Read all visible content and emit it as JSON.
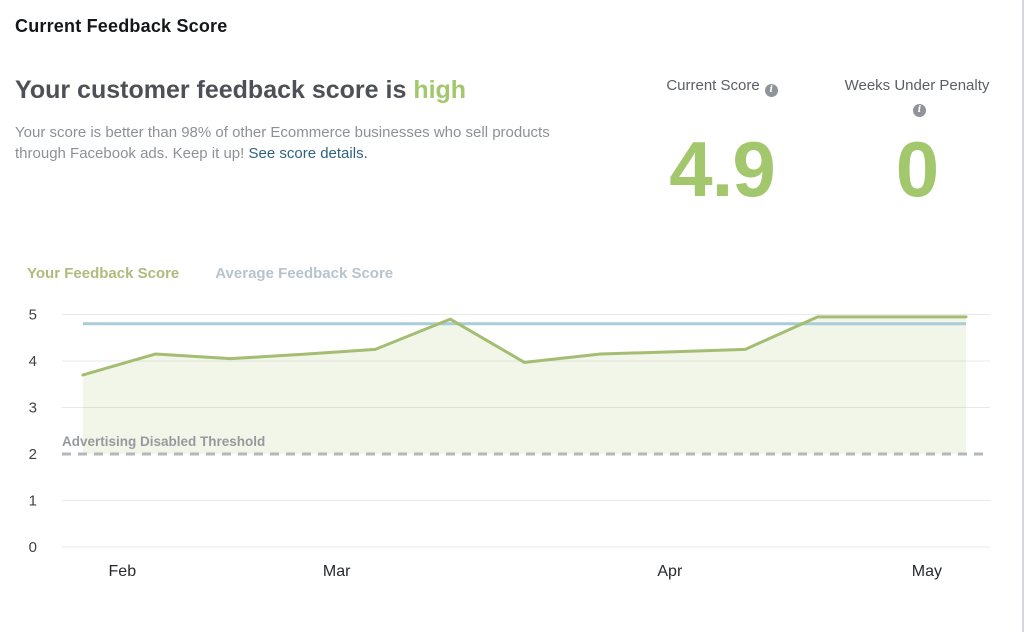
{
  "page": {
    "title": "Current Feedback Score"
  },
  "summary": {
    "headline_prefix": "Your customer feedback score is ",
    "headline_status": "high",
    "body_text": "Your score is better than 98% of other Ecommerce businesses who sell products through Facebook ads. Keep it up! ",
    "link_text": "See score details."
  },
  "stats": [
    {
      "label": "Current Score",
      "value": "4.9"
    },
    {
      "label": "Weeks Under Penalty",
      "value": "0"
    }
  ],
  "colors": {
    "accent_green": "#a2c76c",
    "link_blue": "#2f617f",
    "legend_your": "#b0ba7c",
    "legend_average": "#b6c4ce"
  },
  "chart_data": {
    "type": "line",
    "title": "",
    "xlabel": "",
    "ylabel": "",
    "ylim": [
      0,
      5
    ],
    "y_ticks": [
      5,
      4,
      3,
      2,
      1,
      0
    ],
    "grid": true,
    "legend_position": "top-left",
    "x_ticks": [
      {
        "label": "Feb",
        "pos": 0.065
      },
      {
        "label": "Mar",
        "pos": 0.296
      },
      {
        "label": "Apr",
        "pos": 0.655
      },
      {
        "label": "May",
        "pos": 0.932
      }
    ],
    "threshold": {
      "label": "Advertising Disabled Threshold",
      "value": 2
    },
    "series": [
      {
        "name": "Your Feedback Score",
        "color": "#a4bd72",
        "fill": "rgba(165,196,118,0.16)",
        "points": [
          {
            "x": 0.0,
            "y": 3.7
          },
          {
            "x": 0.082,
            "y": 4.15
          },
          {
            "x": 0.167,
            "y": 4.05
          },
          {
            "x": 0.254,
            "y": 4.15
          },
          {
            "x": 0.331,
            "y": 4.25
          },
          {
            "x": 0.416,
            "y": 4.9
          },
          {
            "x": 0.5,
            "y": 3.97
          },
          {
            "x": 0.586,
            "y": 4.15
          },
          {
            "x": 0.67,
            "y": 4.2
          },
          {
            "x": 0.75,
            "y": 4.25
          },
          {
            "x": 0.832,
            "y": 4.95
          },
          {
            "x": 0.914,
            "y": 4.95
          },
          {
            "x": 1.0,
            "y": 4.95
          }
        ]
      },
      {
        "name": "Average Feedback Score",
        "color": "#a9ccd8",
        "points": [
          {
            "x": 0.0,
            "y": 4.8
          },
          {
            "x": 1.0,
            "y": 4.8
          }
        ]
      }
    ]
  }
}
